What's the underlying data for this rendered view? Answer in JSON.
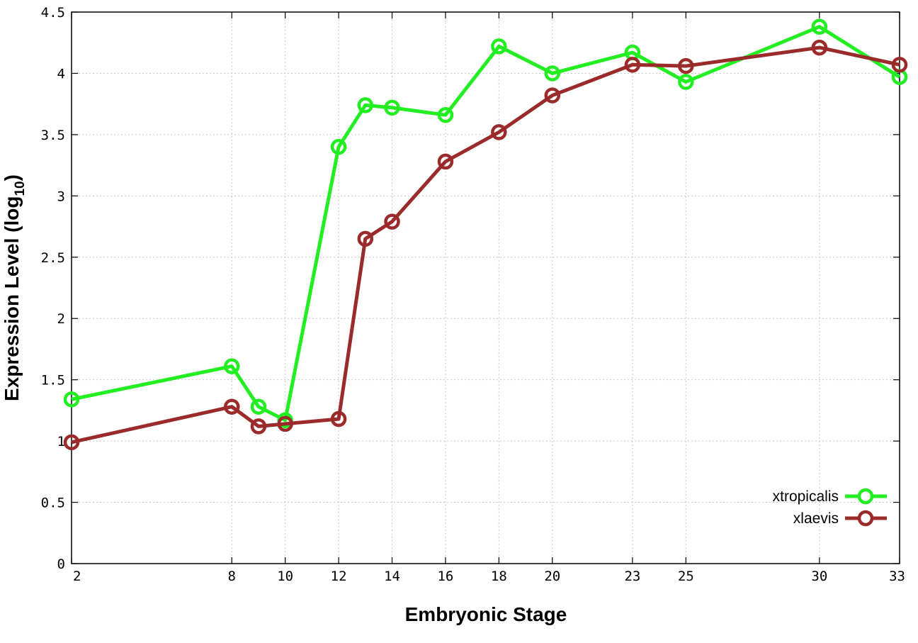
{
  "chart_data": {
    "type": "line",
    "xlabel": "Embryonic Stage",
    "ylabel": "Expression Level (log",
    "ylabel_sub": "10",
    "ylabel_close": ")",
    "xlim": [
      2,
      33
    ],
    "ylim": [
      0,
      4.5
    ],
    "xticks": [
      2,
      8,
      10,
      12,
      14,
      16,
      18,
      20,
      23,
      25,
      30,
      33
    ],
    "yticks": [
      0,
      0.5,
      1,
      1.5,
      2,
      2.5,
      3,
      3.5,
      4,
      4.5
    ],
    "ytick_labels": [
      "0",
      "0.5",
      "1",
      "1.5",
      "2",
      "2.5",
      "3",
      "3.5",
      "4",
      "4.5"
    ],
    "grid": true,
    "legend_position": "bottom-right",
    "x": [
      2,
      8,
      9,
      10,
      12,
      13,
      14,
      16,
      18,
      20,
      23,
      25,
      30,
      33
    ],
    "series": [
      {
        "name": "xtropicalis",
        "color": "#22ee22",
        "values": [
          1.34,
          1.61,
          1.28,
          1.17,
          3.4,
          3.74,
          3.72,
          3.66,
          4.22,
          4.0,
          4.17,
          3.93,
          4.38,
          3.97
        ]
      },
      {
        "name": "xlaevis",
        "color": "#9b2a2a",
        "values": [
          0.99,
          1.28,
          1.12,
          1.14,
          1.18,
          2.65,
          2.79,
          3.28,
          3.52,
          3.82,
          4.07,
          4.06,
          4.21,
          4.07
        ]
      }
    ]
  }
}
